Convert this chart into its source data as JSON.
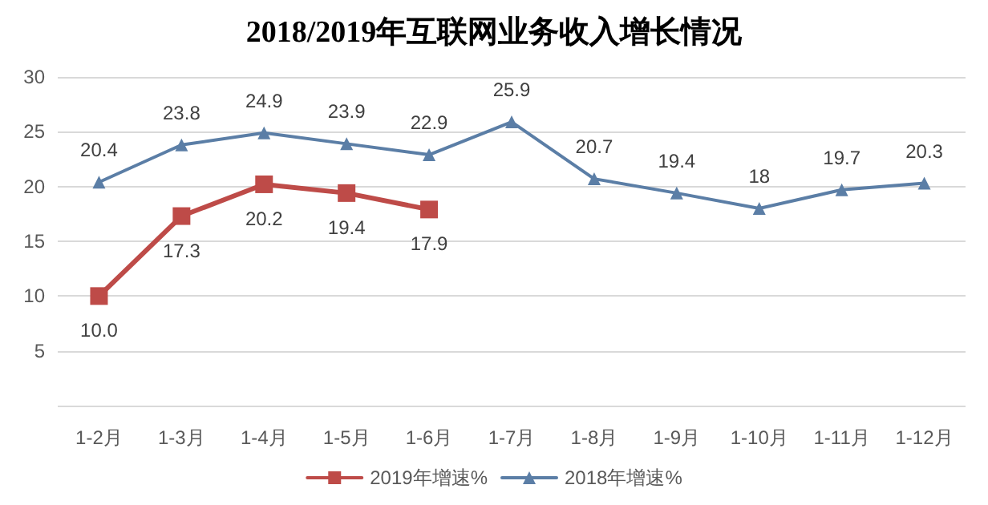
{
  "chart_data": {
    "type": "line",
    "title": "2018/2019年互联网业务收入增长情况",
    "categories": [
      "1-2月",
      "1-3月",
      "1-4月",
      "1-5月",
      "1-6月",
      "1-7月",
      "1-8月",
      "1-9月",
      "1-10月",
      "1-11月",
      "1-12月"
    ],
    "series": [
      {
        "name": "2019年增速%",
        "color": "#be4b48",
        "marker": "square",
        "values": [
          10.0,
          17.3,
          20.2,
          19.4,
          17.9,
          null,
          null,
          null,
          null,
          null,
          null
        ],
        "value_labels": [
          "10.0",
          "17.3",
          "20.2",
          "19.4",
          "17.9",
          null,
          null,
          null,
          null,
          null,
          null
        ]
      },
      {
        "name": "2018年增速%",
        "color": "#5b7ea6",
        "marker": "triangle",
        "values": [
          20.4,
          23.8,
          24.9,
          23.9,
          22.9,
          25.9,
          20.7,
          19.4,
          18,
          19.7,
          20.3
        ],
        "value_labels": [
          "20.4",
          "23.8",
          "24.9",
          "23.9",
          "22.9",
          "25.9",
          "20.7",
          "19.4",
          "18",
          "19.7",
          "20.3"
        ]
      }
    ],
    "ylim": [
      0,
      30
    ],
    "yticks": [
      {
        "value": 0,
        "label": null
      },
      5,
      10,
      15,
      20,
      25,
      30
    ],
    "grid": "y",
    "legend": "bottom"
  }
}
